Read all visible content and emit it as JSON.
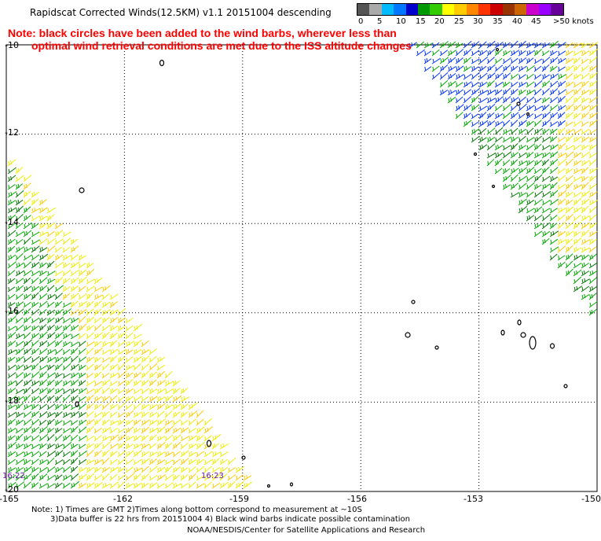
{
  "title": "Rapidscat Corrected Winds(12.5KM) v1.1 20151004 descending",
  "note_line1": "Note: black circles have been added to the wind barbs, wherever less than",
  "note_line2": "optimal wind retrieval conditions are met due to the ISS altitude changes",
  "legend": {
    "labels": [
      "0",
      "5",
      "10",
      "15",
      "20",
      "25",
      "30",
      "35",
      "40",
      "45",
      ">50 knots"
    ],
    "colors": [
      "#555555",
      "#aaaaaa",
      "#00bbff",
      "#0077ff",
      "#0000cc",
      "#009900",
      "#33cc00",
      "#ffff00",
      "#ffcc00",
      "#ff8800",
      "#ff3300",
      "#cc0000",
      "#993300",
      "#cc6600",
      "#cc00cc",
      "#9900ff",
      "#660099"
    ]
  },
  "y_labels": [
    "-10",
    "-12",
    "-14",
    "-16",
    "-18",
    "-20"
  ],
  "x_labels": [
    "-165",
    "-162",
    "-159",
    "-156",
    "-153",
    "-150"
  ],
  "time_labels": [
    "16:22",
    "16:23"
  ],
  "footnotes": {
    "line1": "Note: 1) Times are GMT 2)Times along bottom correspond to measurement at ~10S",
    "line2": "3)Data buffer is 22 hrs from 20151004 4) Black wind barbs indicate possible contamination",
    "line3": "NOAA/NESDIS/Center for Satellite Applications and Research"
  },
  "map": {
    "lon_range": [
      -165,
      -150
    ],
    "lat_range": [
      -20,
      -10
    ],
    "barb_colors": {
      "blue": "#0033ff",
      "green": "#00aa00",
      "dark_green": "#007700",
      "yellow": "#eeee00",
      "gold": "#ffcc00"
    }
  }
}
